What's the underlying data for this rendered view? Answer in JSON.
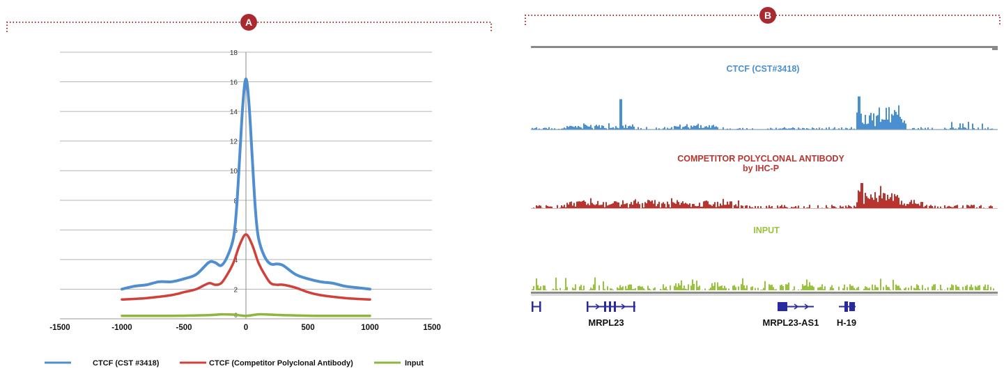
{
  "colors": {
    "frame": "#a8292e",
    "ctcf": "#4f8ed0",
    "competitor": "#d1403a",
    "input": "#8cb63c",
    "track_ctcf": "#4a8fd0",
    "track_competitor": "#b8342e",
    "track_input": "#9ac33c",
    "gene": "#2a2aa0",
    "grid": "#b5b5b5"
  },
  "panels": {
    "a": {
      "badge": "A"
    },
    "b": {
      "badge": "B"
    }
  },
  "chart_data": [
    {
      "type": "line",
      "title": "",
      "xlabel": "",
      "ylabel": "",
      "xlim": [
        -1500,
        1500
      ],
      "ylim": [
        0,
        18
      ],
      "x_ticks": [
        -1500,
        -1000,
        -500,
        0,
        500,
        1000,
        1500
      ],
      "y_ticks": [
        2,
        4,
        6,
        8,
        10,
        12,
        14,
        16,
        18
      ],
      "x_tick_labels": [
        "-1500",
        "-1000",
        "-500",
        "0",
        "500",
        "1000",
        "1500"
      ],
      "y_tick_labels": [
        "2",
        "4",
        "6",
        "8",
        "10",
        "12",
        "14",
        "16",
        "18"
      ],
      "y_zero_label": "0",
      "grid": true,
      "legend_position": "bottom",
      "series": [
        {
          "name": "CTCF (CST #3418)",
          "x": [
            -1000,
            -900,
            -800,
            -700,
            -600,
            -500,
            -400,
            -300,
            -250,
            -200,
            -150,
            -100,
            -75,
            -50,
            -25,
            0,
            25,
            50,
            75,
            100,
            150,
            200,
            250,
            300,
            400,
            500,
            600,
            700,
            800,
            900,
            1000
          ],
          "y": [
            2.0,
            2.2,
            2.3,
            2.5,
            2.5,
            2.7,
            3.0,
            3.8,
            3.8,
            3.6,
            4.2,
            5.5,
            7.5,
            11.0,
            14.5,
            16.2,
            14.5,
            11.0,
            7.5,
            5.5,
            4.2,
            3.7,
            3.7,
            3.6,
            3.0,
            2.7,
            2.5,
            2.4,
            2.2,
            2.1,
            2.0
          ]
        },
        {
          "name": "CTCF (Competitor Polyclonal Antibody)",
          "x": [
            -1000,
            -800,
            -600,
            -500,
            -400,
            -300,
            -250,
            -200,
            -150,
            -100,
            -50,
            0,
            50,
            100,
            150,
            200,
            250,
            300,
            400,
            500,
            600,
            800,
            1000
          ],
          "y": [
            1.3,
            1.4,
            1.6,
            1.8,
            2.0,
            2.4,
            2.3,
            2.4,
            3.0,
            3.8,
            5.0,
            5.7,
            5.0,
            3.8,
            3.0,
            2.4,
            2.3,
            2.3,
            2.1,
            1.8,
            1.6,
            1.4,
            1.3
          ]
        },
        {
          "name": "Input",
          "x": [
            -1000,
            -600,
            -300,
            -200,
            -100,
            0,
            100,
            200,
            300,
            600,
            1000
          ],
          "y": [
            0.2,
            0.2,
            0.25,
            0.3,
            0.28,
            0.2,
            0.3,
            0.28,
            0.25,
            0.2,
            0.2
          ]
        }
      ]
    },
    {
      "type": "genome_tracks",
      "tracks": [
        {
          "name": "CTCF (CST#3418)"
        },
        {
          "name": "COMPETITOR POLYCLONAL ANTIBODY",
          "subtitle": "by IHC-P"
        },
        {
          "name": "INPUT"
        }
      ],
      "genes": [
        "MRPL23",
        "MRPL23-AS1",
        "H-19"
      ]
    }
  ]
}
